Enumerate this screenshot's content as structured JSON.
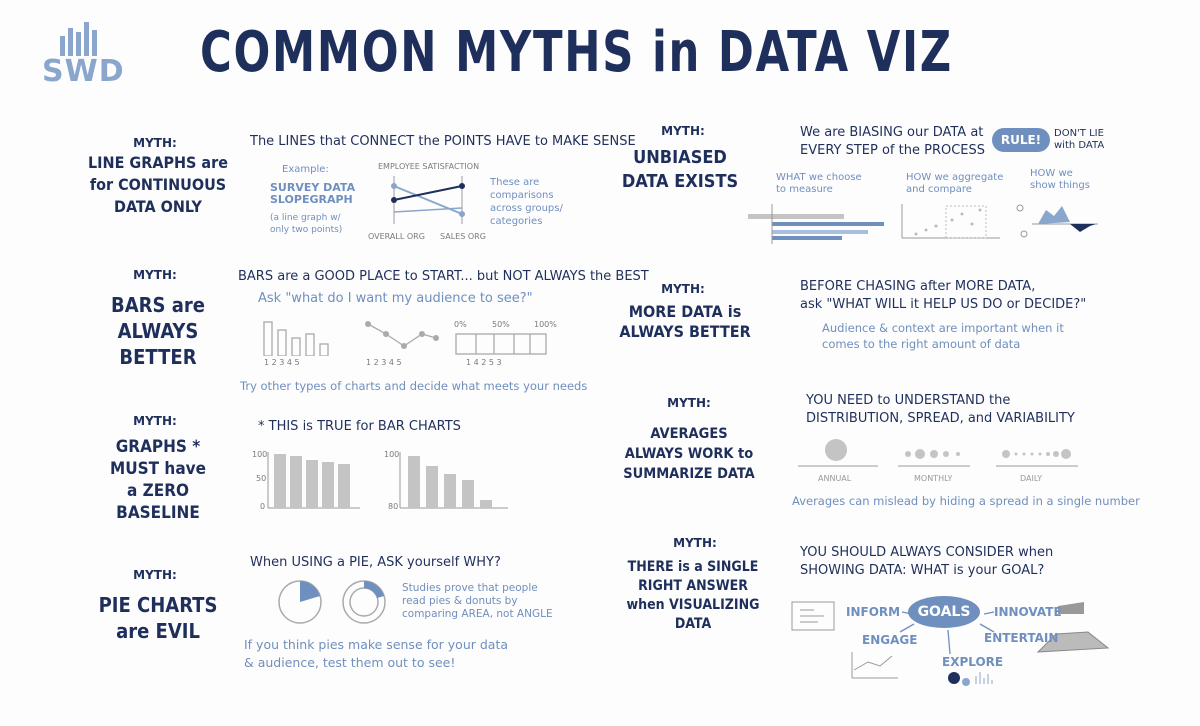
{
  "logo": {
    "text": "SWD"
  },
  "title": "COMMON MYTHS in DATA VIZ",
  "myth_label": "MYTH:",
  "left": [
    {
      "myth": "LINE GRAPHS are\nfor CONTINUOUS\nDATA ONLY",
      "heading": "The LINES that CONNECT the POINTS HAVE to MAKE SENSE",
      "example_label": "Example:",
      "example_title": "SURVEY DATA\nSLOPEGRAPH",
      "example_note": "(a line graph w/\nonly two points)",
      "chart_title": "EMPLOYEE SATISFACTION",
      "axis_left": "OVERALL ORG",
      "axis_right": "SALES ORG",
      "side_note": "These are\ncomparisons\nacross groups/\ncategories"
    },
    {
      "myth": "BARS are\nALWAYS\nBETTER",
      "heading": "BARS are a GOOD PLACE to START... but NOT ALWAYS the BEST",
      "subheading": "Ask \"what do I want my audience to see?\"",
      "bar_ticks": "1  2  3  4  5",
      "line_ticks": "1  2  3  4  5",
      "pct_ticks": [
        "0%",
        "50%",
        "100%"
      ],
      "stack_ticks": "1  4  2  5  3",
      "note": "Try other types of charts and decide what meets your needs"
    },
    {
      "myth": "GRAPHS *\nMUST have\na ZERO\nBASELINE",
      "heading": "* THIS is TRUE for BAR CHARTS",
      "axis1": [
        "100",
        "50",
        "0"
      ],
      "axis2": [
        "100",
        "80"
      ]
    },
    {
      "myth": "PIE CHARTS\nare EVIL",
      "heading": "When USING a PIE, ASK yourself WHY?",
      "side_note": "Studies prove that people\nread pies & donuts by\ncomparing AREA, not ANGLE",
      "note": "If you think pies make sense for your data\n& audience, test them out to see!"
    }
  ],
  "right": [
    {
      "myth": "UNBIASED\nDATA EXISTS",
      "heading": "We are BIASING our DATA at\nEVERY STEP of the PROCESS",
      "rule": "RULE!",
      "rule_note": "DON'T LIE\nwith DATA",
      "col1": "WHAT we choose\nto measure",
      "col2": "HOW we aggregate\nand compare",
      "col3": "HOW we\nshow things"
    },
    {
      "myth": "MORE DATA is\nALWAYS BETTER",
      "heading": "BEFORE CHASING after MORE DATA,\nask \"WHAT WILL it HELP US DO or DECIDE?\"",
      "note": "Audience & context are important when it\ncomes to the right amount of data"
    },
    {
      "myth": "AVERAGES\nALWAYS WORK to\nSUMMARIZE DATA",
      "heading": "YOU NEED to UNDERSTAND the\nDISTRIBUTION, SPREAD, and VARIABILITY",
      "labels": [
        "ANNUAL",
        "MONTHLY",
        "DAILY"
      ],
      "note": "Averages can mislead by hiding a spread in a single number"
    },
    {
      "myth": "THERE is a SINGLE\nRIGHT ANSWER\nwhen VISUALIZING\nDATA",
      "heading": "YOU SHOULD ALWAYS CONSIDER when\nSHOWING DATA: WHAT is your GOAL?",
      "center": "GOALS",
      "goals": [
        "INFORM",
        "INNOVATE",
        "ENGAGE",
        "ENTERTAIN",
        "EXPLORE"
      ]
    }
  ],
  "colors": {
    "navy": "#1f2f5c",
    "blue": "#6f8fbe",
    "gray": "#c4c4c4",
    "light_blue": "#a9bfdf"
  }
}
